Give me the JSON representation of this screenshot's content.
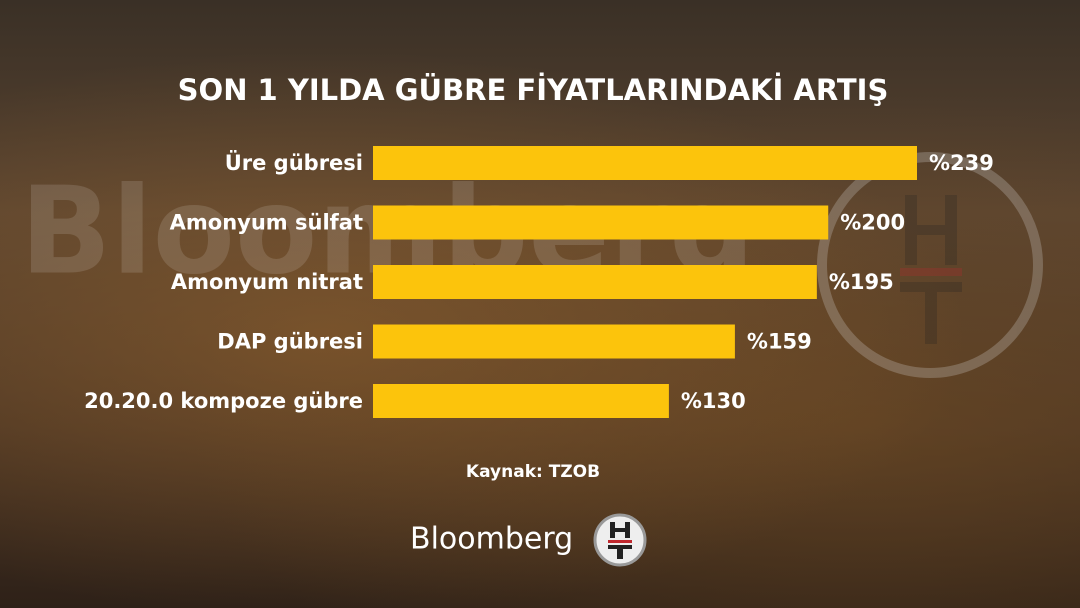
{
  "chart_data": {
    "type": "hbar",
    "title": "SON 1 YILDA GÜBRE FİYATLARINDAKİ ARTIŞ",
    "categories": [
      "Üre gübresi",
      "Amonyum sülfat",
      "Amonyum nitrat",
      "DAP gübresi",
      "20.20.0 kompoze gübre"
    ],
    "values": [
      239,
      200,
      195,
      159,
      130
    ],
    "value_labels": [
      "%239",
      "%200",
      "%195",
      "%159",
      "%130"
    ],
    "color": "#fcc40c",
    "source": "Kaynak: TZOB",
    "brand": "Bloomberg"
  }
}
